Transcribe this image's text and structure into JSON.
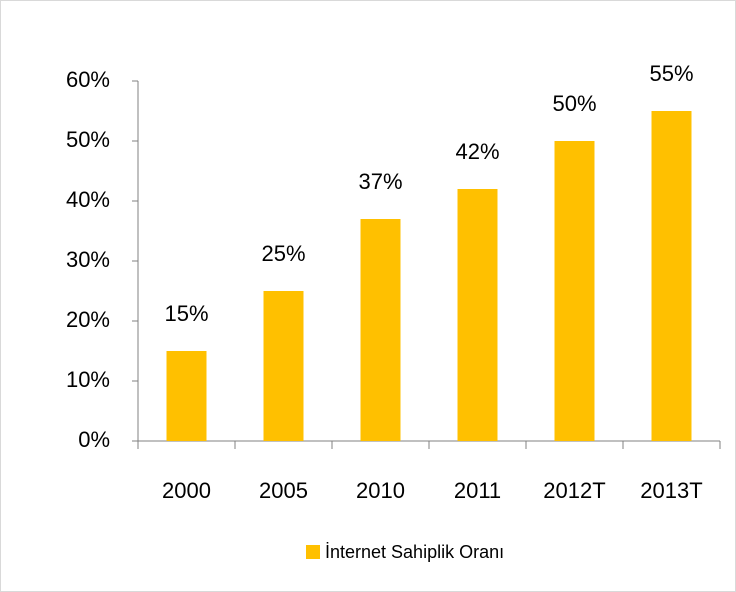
{
  "chart_data": {
    "type": "bar",
    "categories": [
      "2000",
      "2005",
      "2010",
      "2011",
      "2012T",
      "2013T"
    ],
    "series": [
      {
        "name": "İnternet Sahiplik Oranı",
        "color": "#FFC000",
        "values": [
          15,
          25,
          37,
          42,
          50,
          55
        ],
        "value_labels": [
          "15%",
          "25%",
          "37%",
          "42%",
          "50%",
          "55%"
        ]
      }
    ],
    "ylim": [
      0,
      60
    ],
    "yticks": [
      {
        "value": 0,
        "label": "0%"
      },
      {
        "value": 10,
        "label": "10%"
      },
      {
        "value": 20,
        "label": "20%"
      },
      {
        "value": 30,
        "label": "30%"
      },
      {
        "value": 40,
        "label": "40%"
      },
      {
        "value": 50,
        "label": "50%"
      },
      {
        "value": 60,
        "label": "60%"
      }
    ],
    "legend": "bottom"
  }
}
